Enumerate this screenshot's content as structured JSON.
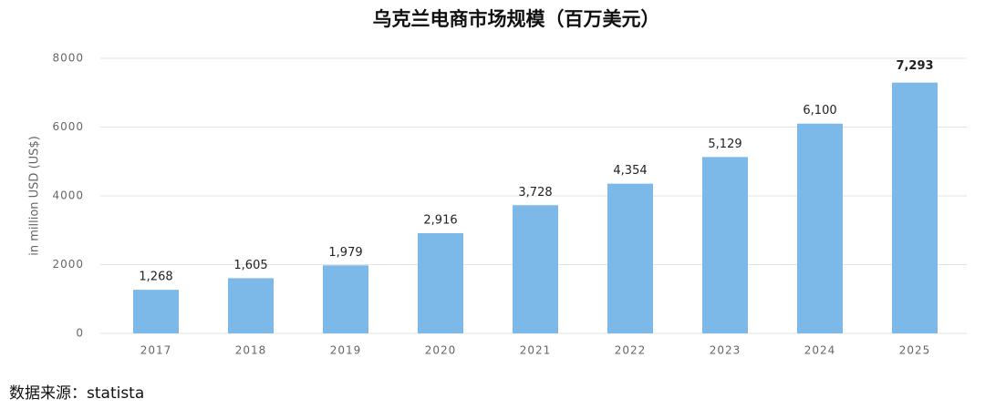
{
  "chart_data": {
    "type": "bar",
    "title": "乌克兰电商市场规模（百万美元）",
    "y_label": "in million USD (US$)",
    "categories": [
      "2017",
      "2018",
      "2019",
      "2020",
      "2021",
      "2022",
      "2023",
      "2024",
      "2025"
    ],
    "values": [
      1268,
      1605,
      1979,
      2916,
      3728,
      4354,
      5129,
      6100,
      7293
    ],
    "value_labels": [
      "1,268",
      "1,605",
      "1,979",
      "2,916",
      "3,728",
      "4,354",
      "5,129",
      "6,100",
      "7,293"
    ],
    "color": "#7cb9e8",
    "ylim": [
      0,
      8000
    ],
    "yticks": [
      0,
      2000,
      4000,
      6000,
      8000
    ],
    "grid": true,
    "source": "数据来源：statista"
  }
}
